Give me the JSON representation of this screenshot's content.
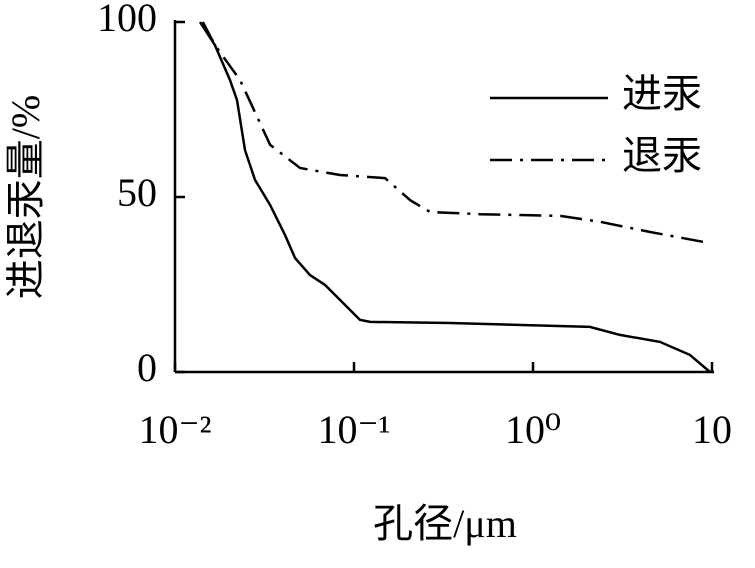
{
  "chart_data": {
    "type": "line",
    "x_label": "孔径/μm",
    "y_label": "进退汞量/%",
    "xlim": [
      0.01,
      10
    ],
    "xlog": true,
    "xticks": [
      {
        "value": 0.01,
        "label": "10⁻²"
      },
      {
        "value": 0.1,
        "label": "10⁻¹"
      },
      {
        "value": 1,
        "label": "10⁰"
      },
      {
        "value": 10,
        "label": "10"
      }
    ],
    "ylim": [
      0,
      100
    ],
    "yticks": [
      0,
      50,
      100
    ],
    "legend": "upper right",
    "series": [
      {
        "name": "进汞",
        "color": "#000000",
        "dash": "solid",
        "x": [
          0.0138,
          0.0167,
          0.0203,
          0.0222,
          0.0246,
          0.028,
          0.034,
          0.0412,
          0.0468,
          0.0568,
          0.0689,
          0.0835,
          0.108,
          0.123,
          0.344,
          2.08,
          3.06,
          5.12,
          7.53,
          9.75
        ],
        "values": [
          100,
          93.4,
          83.4,
          77.7,
          63.4,
          54.9,
          47.7,
          39.1,
          32.6,
          27.7,
          24.9,
          20.6,
          14.9,
          14.3,
          14,
          12.9,
          10.6,
          8.6,
          4.9,
          0
        ]
      },
      {
        "name": "退汞",
        "color": "#000000",
        "dash": "dashdot",
        "x": [
          0.0143,
          0.0167,
          0.0231,
          0.034,
          0.0499,
          0.0835,
          0.149,
          0.206,
          0.266,
          0.506,
          1.42,
          2.37,
          4.51,
          9.14
        ],
        "values": [
          100,
          93.4,
          83.4,
          64.9,
          58.3,
          56.3,
          55.4,
          49.1,
          45.7,
          45.1,
          44.6,
          42.9,
          40,
          37.1
        ]
      }
    ]
  }
}
